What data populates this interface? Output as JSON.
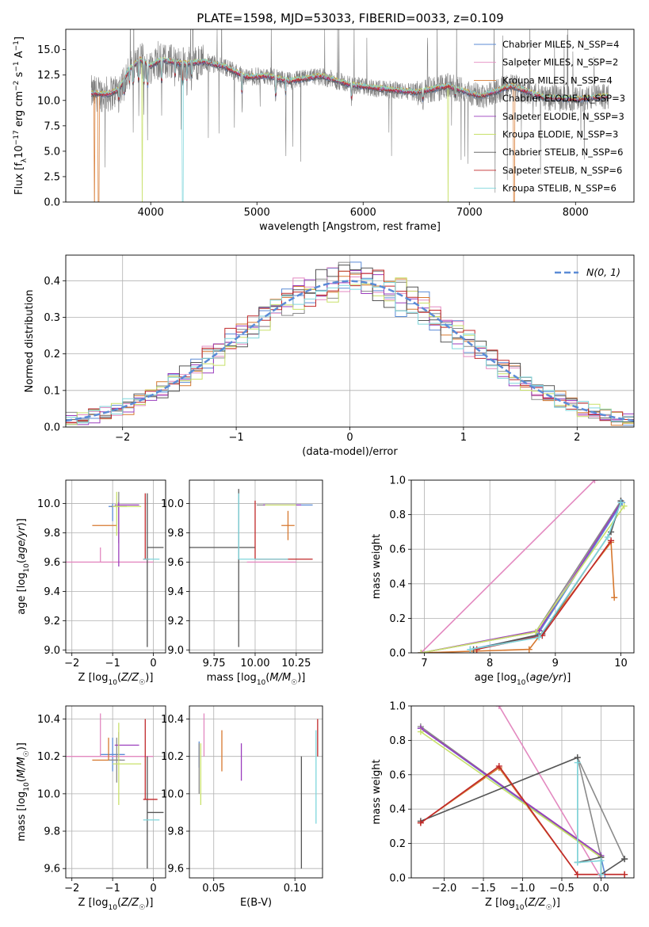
{
  "figure": {
    "title": "PLATE=1598, MJD=53033, FIBERID=0033, z=0.109"
  },
  "legend_labels": {
    "spectrum": [
      "Chabrier MILES, N_SSP=4",
      "Salpeter MILES, N_SSP=2",
      "Kroupa MILES, N_SSP=4",
      "Chabrier ELODIE, N_SSP=3",
      "Salpeter ELODIE, N_SSP=3",
      "Kroupa ELODIE, N_SSP=3",
      "Chabrier STELIB, N_SSP=6",
      "Salpeter STELIB, N_SSP=6",
      "Kroupa STELIB, N_SSP=6"
    ],
    "histogram": "N(0, 1)"
  },
  "colors": {
    "Chabrier MILES": "#5b8bd6",
    "Salpeter MILES": "#e389c0",
    "Kroupa MILES": "#d6782f",
    "Chabrier ELODIE": "#8a8a8a",
    "Salpeter ELODIE": "#9a3dbd",
    "Kroupa ELODIE": "#c8e06a",
    "Chabrier STELIB": "#555555",
    "Salpeter STELIB": "#c0282a",
    "Kroupa STELIB": "#7fd6dc",
    "spectrum": "#808080",
    "normal_curve": "#5b8bd6"
  },
  "chart_data": [
    {
      "id": "spectrum",
      "type": "line",
      "xlabel": "wavelength [Angstrom, rest frame]",
      "ylabel": "Flux [f_λ 10^-17 erg cm^-2 s^-1 A^-1]",
      "xlim": [
        3200,
        8550
      ],
      "ylim": [
        0,
        17
      ],
      "xticks": [
        4000,
        5000,
        6000,
        7000,
        8000
      ],
      "yticks": [
        0.0,
        2.5,
        5.0,
        7.5,
        10.0,
        12.5,
        15.0
      ],
      "continuum_points": [
        [
          3440,
          10.7
        ],
        [
          3600,
          10.6
        ],
        [
          3700,
          11.1
        ],
        [
          3800,
          13.1
        ],
        [
          3900,
          14.0
        ],
        [
          4000,
          13.4
        ],
        [
          4100,
          14.0
        ],
        [
          4300,
          13.6
        ],
        [
          4500,
          13.8
        ],
        [
          4700,
          13.3
        ],
        [
          4900,
          12.3
        ],
        [
          5100,
          12.4
        ],
        [
          5300,
          11.9
        ],
        [
          5600,
          12.4
        ],
        [
          5900,
          11.5
        ],
        [
          6200,
          11.1
        ],
        [
          6500,
          10.8
        ],
        [
          6800,
          11.4
        ],
        [
          7100,
          10.4
        ],
        [
          7400,
          11.4
        ],
        [
          7700,
          10.3
        ],
        [
          8000,
          10.1
        ],
        [
          8300,
          10.4
        ]
      ],
      "observed_range": [
        3440,
        8310
      ],
      "model_dropouts": [
        {
          "series": "Kroupa MILES",
          "x": [
            3470,
            3510,
            7420
          ]
        },
        {
          "series": "Kroupa ELODIE",
          "x": [
            3920,
            6800
          ]
        },
        {
          "series": "Kroupa STELIB",
          "x": [
            4300
          ]
        }
      ]
    },
    {
      "id": "residuals",
      "type": "step",
      "xlabel": "(data-model)/error",
      "ylabel": "Normed distribution",
      "xlim": [
        -2.5,
        2.5
      ],
      "ylim": [
        0,
        0.47
      ],
      "xticks": [
        -2,
        -1,
        0,
        1,
        2
      ],
      "yticks": [
        0.0,
        0.1,
        0.2,
        0.3,
        0.4
      ],
      "bin_width": 0.1,
      "normal_curve": {
        "mean": 0,
        "sigma": 1
      }
    },
    {
      "id": "age-metallicity",
      "type": "errorbar",
      "xlabel": "Z [log10(Z/Z☉)]",
      "ylabel": "age [log10(age/yr)]",
      "xlim": [
        -2.15,
        0.3
      ],
      "ylim": [
        8.98,
        10.16
      ],
      "xticks": [
        -2,
        -1,
        0
      ],
      "yticks": [
        9.0,
        9.2,
        9.4,
        9.6,
        9.8,
        10.0
      ],
      "points": [
        {
          "series": "Chabrier MILES",
          "x": -1.0,
          "xerr": [
            0.1,
            0.1
          ],
          "y": 9.98,
          "yerr": [
            0.1,
            0.02
          ]
        },
        {
          "series": "Salpeter MILES",
          "x": -1.3,
          "xerr": [
            1.3,
            1.3
          ],
          "y": 9.6,
          "yerr": [
            0.0,
            0.1
          ]
        },
        {
          "series": "Kroupa MILES",
          "x": -1.1,
          "xerr": [
            0.4,
            0.2
          ],
          "y": 9.85,
          "yerr": [
            0.0,
            0.0
          ]
        },
        {
          "series": "Chabrier ELODIE",
          "x": -0.85,
          "xerr": [
            0.2,
            0.2
          ],
          "y": 9.98,
          "yerr": [
            0.25,
            0.1
          ]
        },
        {
          "series": "Salpeter ELODIE",
          "x": -0.85,
          "xerr": [
            0.1,
            0.5
          ],
          "y": 9.99,
          "yerr": [
            0.42,
            0.02
          ]
        },
        {
          "series": "Kroupa ELODIE",
          "x": -0.9,
          "xerr": [
            0.1,
            0.6
          ],
          "y": 9.98,
          "yerr": [
            0.2,
            0.1
          ]
        },
        {
          "series": "Chabrier STELIB",
          "x": -0.15,
          "xerr": [
            0.0,
            0.4
          ],
          "y": 9.7,
          "yerr": [
            0.68,
            0.37
          ]
        },
        {
          "series": "Salpeter STELIB",
          "x": -0.2,
          "xerr": [
            0.05,
            0.1
          ],
          "y": 9.62,
          "yerr": [
            0.0,
            0.45
          ]
        },
        {
          "series": "Kroupa STELIB",
          "x": -0.05,
          "xerr": [
            0.2,
            0.2
          ],
          "y": 9.62,
          "yerr": [
            0.0,
            0.0
          ]
        }
      ]
    },
    {
      "id": "age-mass",
      "type": "errorbar",
      "xlabel": "mass [log10(M/M☉)]",
      "ylabel": "",
      "xlim": [
        9.6,
        10.41
      ],
      "ylim": [
        8.98,
        10.16
      ],
      "xticks": [
        9.75,
        10.0,
        10.25
      ],
      "xticklabels": [
        "9.75",
        "10.00",
        "10.25"
      ],
      "yticks": [
        9.0,
        9.2,
        9.4,
        9.6,
        9.8,
        10.0
      ],
      "points": [
        {
          "series": "Chabrier MILES",
          "x": 10.2,
          "xerr": [
            0.15,
            0.15
          ],
          "y": 9.99,
          "yerr": [
            0.0,
            0.0
          ]
        },
        {
          "series": "Salpeter MILES",
          "x": 10.1,
          "xerr": [
            0.15,
            0.15
          ],
          "y": 9.6,
          "yerr": [
            0.0,
            0.0
          ]
        },
        {
          "series": "Kroupa MILES",
          "x": 10.2,
          "xerr": [
            0.04,
            0.04
          ],
          "y": 9.85,
          "yerr": [
            0.1,
            0.1
          ]
        },
        {
          "series": "Chabrier ELODIE",
          "x": 10.15,
          "xerr": [
            0.14,
            0.08
          ],
          "y": 9.99,
          "yerr": [
            0.0,
            0.0
          ]
        },
        {
          "series": "Salpeter ELODIE",
          "x": 10.15,
          "xerr": [
            0.1,
            0.13
          ],
          "y": 9.99,
          "yerr": [
            0.0,
            0.0
          ]
        },
        {
          "series": "Kroupa ELODIE",
          "x": 10.15,
          "xerr": [
            0.09,
            0.1
          ],
          "y": 9.99,
          "yerr": [
            0.0,
            0.0
          ]
        },
        {
          "series": "Chabrier STELIB",
          "x": 9.9,
          "xerr": [
            0.3,
            0.1
          ],
          "y": 9.7,
          "yerr": [
            0.68,
            0.4
          ]
        },
        {
          "series": "Salpeter STELIB",
          "x": 10.0,
          "xerr": [
            0.0,
            0.35
          ],
          "y": 9.62,
          "yerr": [
            0.0,
            0.4
          ]
        },
        {
          "series": "Kroupa STELIB",
          "x": 9.9,
          "xerr": [
            0.0,
            0.3
          ],
          "y": 9.62,
          "yerr": [
            0.0,
            0.45
          ]
        }
      ]
    },
    {
      "id": "weight-age",
      "type": "line",
      "xlabel": "age [log10(age/yr)]",
      "ylabel": "mass weight",
      "xlim": [
        6.8,
        10.2
      ],
      "ylim": [
        0,
        1
      ],
      "xticks": [
        7,
        8,
        9,
        10
      ],
      "yticks": [
        0.0,
        0.2,
        0.4,
        0.6,
        0.8,
        1.0
      ],
      "series": [
        {
          "name": "Chabrier MILES",
          "x": [
            7.7,
            8.72,
            10.02
          ],
          "y": [
            0.02,
            0.1,
            0.87
          ]
        },
        {
          "name": "Salpeter MILES",
          "x": [
            6.95,
            9.6
          ],
          "y": [
            0.0,
            1.0
          ]
        },
        {
          "name": "Kroupa MILES",
          "x": [
            6.95,
            8.6,
            9.85,
            9.9
          ],
          "y": [
            0.0,
            0.02,
            0.64,
            0.32
          ]
        },
        {
          "name": "Chabrier ELODIE",
          "x": [
            6.95,
            8.7,
            10.0
          ],
          "y": [
            0.0,
            0.12,
            0.88
          ]
        },
        {
          "name": "Salpeter ELODIE",
          "x": [
            6.95,
            8.75,
            10.0
          ],
          "y": [
            0.0,
            0.13,
            0.87
          ]
        },
        {
          "name": "Kroupa ELODIE",
          "x": [
            6.95,
            8.7,
            10.05
          ],
          "y": [
            0.0,
            0.12,
            0.85
          ]
        },
        {
          "name": "Chabrier STELIB",
          "x": [
            7.75,
            8.8,
            9.85,
            10.0
          ],
          "y": [
            0.02,
            0.11,
            0.7,
            0.88
          ]
        },
        {
          "name": "Salpeter STELIB",
          "x": [
            7.8,
            8.8,
            9.85
          ],
          "y": [
            0.02,
            0.1,
            0.65
          ]
        },
        {
          "name": "Kroupa STELIB",
          "x": [
            7.7,
            8.75,
            9.8,
            10.0
          ],
          "y": [
            0.02,
            0.09,
            0.67,
            0.87
          ]
        }
      ]
    },
    {
      "id": "mass-metallicity",
      "type": "errorbar",
      "xlabel": "Z [log10(Z/Z☉)]",
      "ylabel": "mass [log10(M/M☉)]",
      "xlim": [
        -2.15,
        0.3
      ],
      "ylim": [
        9.55,
        10.47
      ],
      "xticks": [
        -2,
        -1,
        0
      ],
      "yticks": [
        9.6,
        9.8,
        10.0,
        10.2,
        10.4
      ],
      "points": [
        {
          "series": "Chabrier MILES",
          "x": -1.0,
          "xerr": [
            0.3,
            0.3
          ],
          "y": 10.21,
          "yerr": [
            0.09,
            0.09
          ]
        },
        {
          "series": "Salpeter MILES",
          "x": -1.3,
          "xerr": [
            1.3,
            1.3
          ],
          "y": 10.2,
          "yerr": [
            0.0,
            0.23
          ]
        },
        {
          "series": "Kroupa MILES",
          "x": -1.1,
          "xerr": [
            0.4,
            0.3
          ],
          "y": 10.18,
          "yerr": [
            0.0,
            0.12
          ]
        },
        {
          "series": "Chabrier ELODIE",
          "x": -0.9,
          "xerr": [
            0.2,
            0.2
          ],
          "y": 10.18,
          "yerr": [
            0.12,
            0.12
          ]
        },
        {
          "series": "Salpeter ELODIE",
          "x": -0.85,
          "xerr": [
            0.1,
            0.5
          ],
          "y": 10.26,
          "yerr": [
            0.07,
            0.07
          ]
        },
        {
          "series": "Kroupa ELODIE",
          "x": -0.85,
          "xerr": [
            0.15,
            0.55
          ],
          "y": 10.16,
          "yerr": [
            0.22,
            0.22
          ]
        },
        {
          "series": "Chabrier STELIB",
          "x": -0.15,
          "xerr": [
            0.0,
            0.4
          ],
          "y": 9.9,
          "yerr": [
            0.3,
            0.3
          ]
        },
        {
          "series": "Salpeter STELIB",
          "x": -0.2,
          "xerr": [
            0.05,
            0.3
          ],
          "y": 9.97,
          "yerr": [
            0.0,
            0.43
          ]
        },
        {
          "series": "Kroupa STELIB",
          "x": -0.05,
          "xerr": [
            0.2,
            0.2
          ],
          "y": 9.86,
          "yerr": [
            0.0,
            0.0
          ]
        }
      ]
    },
    {
      "id": "mass-ebv",
      "type": "errorbar",
      "xlabel": "E(B-V)",
      "ylabel": "",
      "xlim": [
        0.035,
        0.117
      ],
      "ylim": [
        9.55,
        10.47
      ],
      "xticks": [
        0.05,
        0.1
      ],
      "xticklabels": [
        "0.05",
        "0.10"
      ],
      "yticks": [
        9.6,
        9.8,
        10.0,
        10.2,
        10.4
      ],
      "points": [
        {
          "series": "Chabrier MILES",
          "x": 0.041,
          "y": 10.2,
          "yerr": [
            0.06,
            0.08
          ]
        },
        {
          "series": "Salpeter MILES",
          "x": 0.044,
          "y": 10.2,
          "yerr": [
            0.0,
            0.23
          ]
        },
        {
          "series": "Kroupa MILES",
          "x": 0.055,
          "y": 10.22,
          "yerr": [
            0.1,
            0.12
          ]
        },
        {
          "series": "Chabrier ELODIE",
          "x": 0.041,
          "y": 10.15,
          "yerr": [
            0.15,
            0.12
          ]
        },
        {
          "series": "Salpeter ELODIE",
          "x": 0.067,
          "y": 10.17,
          "yerr": [
            0.1,
            0.1
          ]
        },
        {
          "series": "Kroupa ELODIE",
          "x": 0.042,
          "y": 10.1,
          "yerr": [
            0.16,
            0.17
          ]
        },
        {
          "series": "Chabrier STELIB",
          "x": 0.104,
          "y": 9.9,
          "yerr": [
            0.3,
            0.3
          ]
        },
        {
          "series": "Salpeter STELIB",
          "x": 0.114,
          "y": 10.2,
          "yerr": [
            0.0,
            0.2
          ]
        },
        {
          "series": "Kroupa STELIB",
          "x": 0.113,
          "y": 10.1,
          "yerr": [
            0.26,
            0.24
          ]
        }
      ]
    },
    {
      "id": "weight-metallicity",
      "type": "line",
      "xlabel": "Z [log10(Z/Z☉)]",
      "ylabel": "mass weight",
      "xlim": [
        -2.42,
        0.42
      ],
      "ylim": [
        0,
        1
      ],
      "xticks": [
        -2.0,
        -1.5,
        -1.0,
        -0.5,
        0.0
      ],
      "xticklabels": [
        "−2.0",
        "−1.5",
        "−1.0",
        "−0.5",
        "0.0"
      ],
      "yticks": [
        0.0,
        0.2,
        0.4,
        0.6,
        0.8,
        1.0
      ],
      "series": [
        {
          "name": "Chabrier MILES",
          "x": [
            -2.3,
            0.0,
            0.05
          ],
          "y": [
            0.87,
            0.12,
            0.02
          ]
        },
        {
          "name": "Salpeter MILES",
          "x": [
            -1.3,
            0.0
          ],
          "y": [
            1.0,
            0.0
          ]
        },
        {
          "name": "Kroupa MILES",
          "x": [
            -2.3,
            -1.3,
            -0.3,
            0.3
          ],
          "y": [
            0.32,
            0.64,
            0.02,
            0.02
          ]
        },
        {
          "name": "Chabrier ELODIE",
          "x": [
            -2.3,
            0.0,
            -0.3,
            0.3
          ],
          "y": [
            0.88,
            0.12,
            0.7,
            0.11
          ]
        },
        {
          "name": "Salpeter ELODIE",
          "x": [
            -2.3,
            0.0
          ],
          "y": [
            0.87,
            0.13
          ]
        },
        {
          "name": "Kroupa ELODIE",
          "x": [
            -2.3,
            0.0,
            0.0
          ],
          "y": [
            0.85,
            0.12,
            0.02
          ]
        },
        {
          "name": "Chabrier STELIB",
          "x": [
            -2.3,
            -0.3,
            -0.3,
            0.0,
            0.0,
            0.3
          ],
          "y": [
            0.33,
            0.7,
            0.09,
            0.12,
            0.02,
            0.11
          ]
        },
        {
          "name": "Salpeter STELIB",
          "x": [
            -2.3,
            -1.3,
            -0.3,
            0.3
          ],
          "y": [
            0.32,
            0.65,
            0.02,
            0.02
          ]
        },
        {
          "name": "Kroupa STELIB",
          "x": [
            -0.3,
            -0.3,
            0.0,
            0.0
          ],
          "y": [
            0.67,
            0.09,
            0.1,
            0.02
          ]
        }
      ]
    }
  ]
}
